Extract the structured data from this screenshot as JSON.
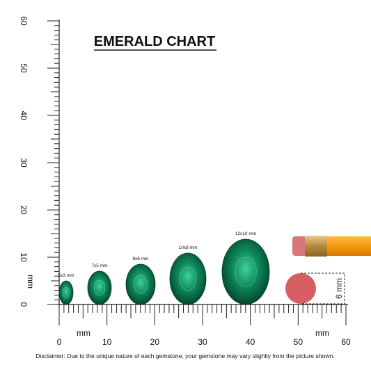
{
  "title": "EMERALD CHART",
  "vertical_ruler": {
    "labels": [
      "0",
      "10",
      "20",
      "30",
      "40",
      "50",
      "60"
    ],
    "unit": "mm"
  },
  "horizontal_ruler": {
    "labels": [
      "0",
      "10",
      "20",
      "30",
      "40",
      "50",
      "60"
    ],
    "unit_left": "mm",
    "unit_right": "mm"
  },
  "gems": [
    {
      "label": "5x3 mm"
    },
    {
      "label": "7x5 mm"
    },
    {
      "label": "8x6 mm"
    },
    {
      "label": "10x8 mm"
    },
    {
      "label": "12x10 mm"
    }
  ],
  "eraser": {
    "label": "6 mm"
  },
  "disclaimer": "Disclaimer: Due to the unique nature of each gemstone, your gemstone may vary slightly from the picture shown."
}
